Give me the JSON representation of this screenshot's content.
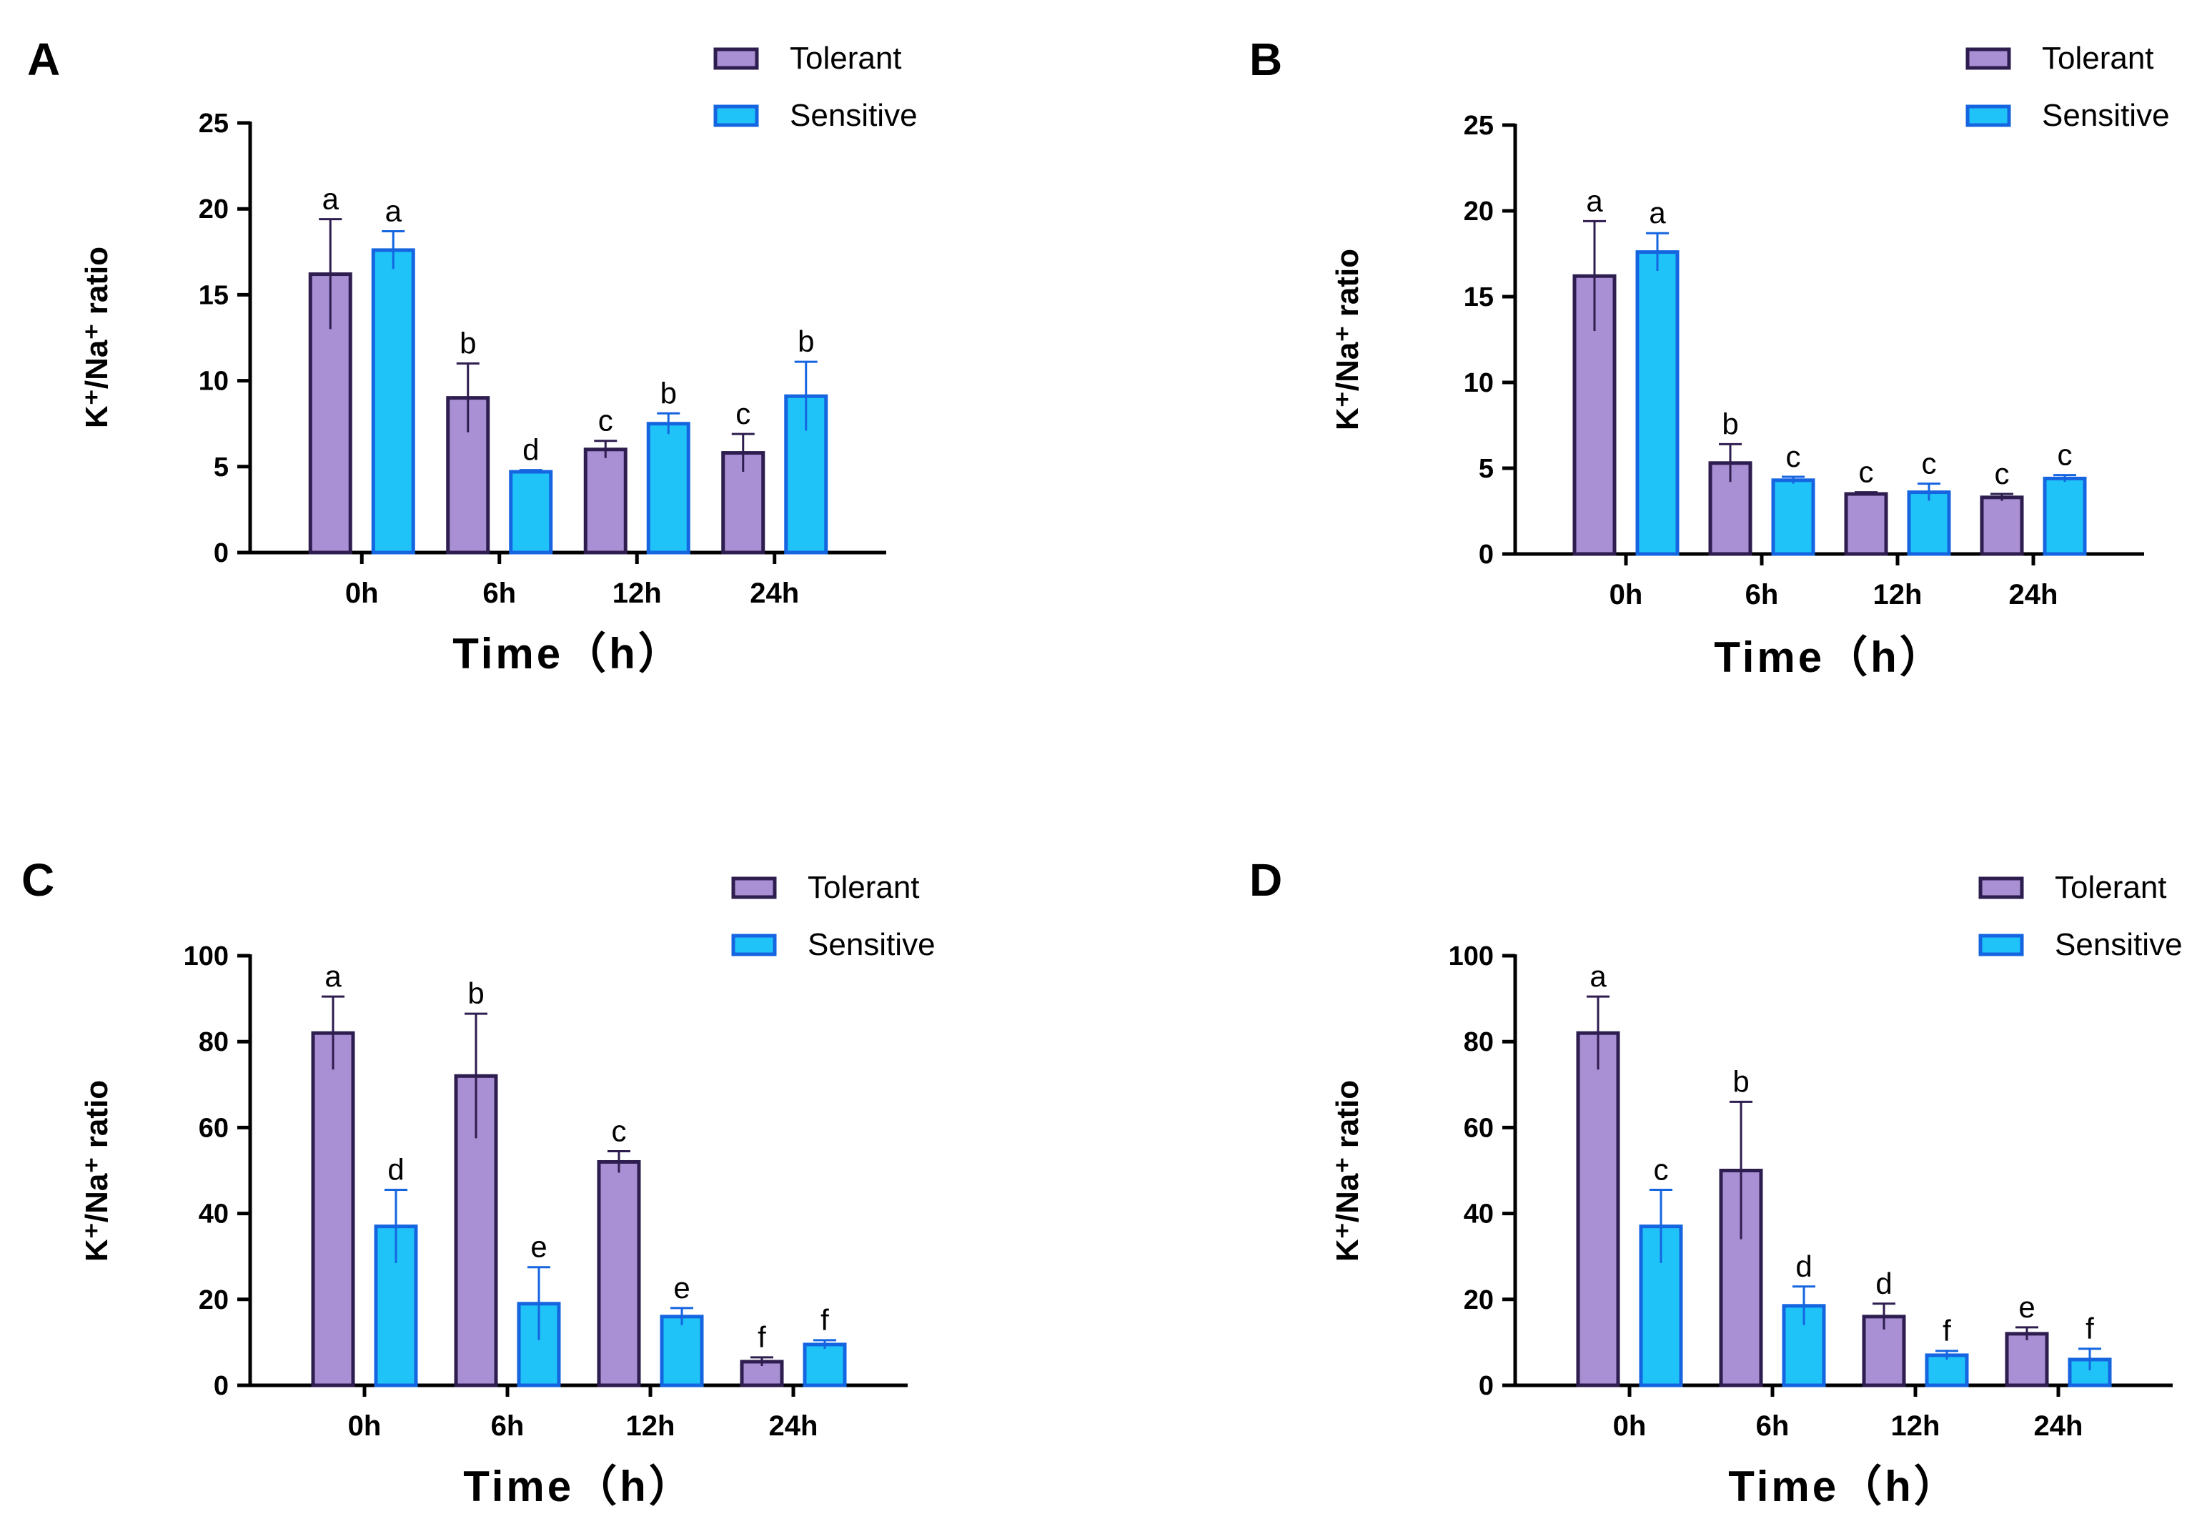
{
  "legend": {
    "series_a": "Tolerant",
    "series_b": "Sensitive"
  },
  "colors": {
    "tolerant_fill": "#a98fd3",
    "tolerant_stroke": "#2e1d4f",
    "sensitive_fill": "#1fc3f7",
    "sensitive_stroke": "#1565e0"
  },
  "chart_data": [
    {
      "type": "bar",
      "panel": "A",
      "categories": [
        "0h",
        "6h",
        "12h",
        "24h"
      ],
      "series": [
        {
          "name": "Tolerant",
          "values": [
            16.2,
            9.0,
            6.0,
            5.8
          ],
          "errors": [
            3.2,
            2.0,
            0.5,
            1.1
          ],
          "letters": [
            "a",
            "b",
            "c",
            "c"
          ]
        },
        {
          "name": "Sensitive",
          "values": [
            17.6,
            4.7,
            7.5,
            9.1
          ],
          "errors": [
            1.1,
            0.1,
            0.6,
            2.0
          ],
          "letters": [
            "a",
            "d",
            "b",
            "b"
          ]
        }
      ],
      "xlabel": "Time（h）",
      "ylabel": "K⁺/Na⁺ ratio",
      "ylim": [
        0,
        25
      ],
      "yticks": [
        0,
        5,
        10,
        15,
        20,
        25
      ]
    },
    {
      "type": "bar",
      "panel": "B",
      "categories": [
        "0h",
        "6h",
        "12h",
        "24h"
      ],
      "series": [
        {
          "name": "Tolerant",
          "values": [
            16.2,
            5.3,
            3.5,
            3.3
          ],
          "errors": [
            3.2,
            1.1,
            0.1,
            0.2
          ],
          "letters": [
            "a",
            "b",
            "c",
            "c"
          ]
        },
        {
          "name": "Sensitive",
          "values": [
            17.6,
            4.3,
            3.6,
            4.4
          ],
          "errors": [
            1.1,
            0.2,
            0.5,
            0.2
          ],
          "letters": [
            "a",
            "c",
            "c",
            "c"
          ]
        }
      ],
      "xlabel": "Time（h）",
      "ylabel": "K⁺/Na⁺ ratio",
      "ylim": [
        0,
        25
      ],
      "yticks": [
        0,
        5,
        10,
        15,
        20,
        25
      ]
    },
    {
      "type": "bar",
      "panel": "C",
      "categories": [
        "0h",
        "6h",
        "12h",
        "24h"
      ],
      "series": [
        {
          "name": "Tolerant",
          "values": [
            82,
            72,
            52,
            5.5
          ],
          "errors": [
            8.5,
            14.5,
            2.5,
            1.0
          ],
          "letters": [
            "a",
            "b",
            "c",
            "f"
          ]
        },
        {
          "name": "Sensitive",
          "values": [
            37,
            19,
            16,
            9.5
          ],
          "errors": [
            8.5,
            8.5,
            2.0,
            1.0
          ],
          "letters": [
            "d",
            "e",
            "e",
            "f"
          ]
        }
      ],
      "xlabel": "Time（h）",
      "ylabel": "K⁺/Na⁺ ratio",
      "ylim": [
        0,
        100
      ],
      "yticks": [
        0,
        20,
        40,
        60,
        80,
        100
      ]
    },
    {
      "type": "bar",
      "panel": "D",
      "categories": [
        "0h",
        "6h",
        "12h",
        "24h"
      ],
      "series": [
        {
          "name": "Tolerant",
          "values": [
            82,
            50,
            16,
            12
          ],
          "errors": [
            8.5,
            16,
            3.0,
            1.5
          ],
          "letters": [
            "a",
            "b",
            "d",
            "e"
          ]
        },
        {
          "name": "Sensitive",
          "values": [
            37,
            18.5,
            7.0,
            6.0
          ],
          "errors": [
            8.5,
            4.5,
            1.0,
            2.5
          ],
          "letters": [
            "c",
            "d",
            "f",
            "f"
          ]
        }
      ],
      "xlabel": "Time（h）",
      "ylabel": "K⁺/Na⁺ ratio",
      "ylim": [
        0,
        100
      ],
      "yticks": [
        0,
        20,
        40,
        60,
        80,
        100
      ]
    }
  ]
}
